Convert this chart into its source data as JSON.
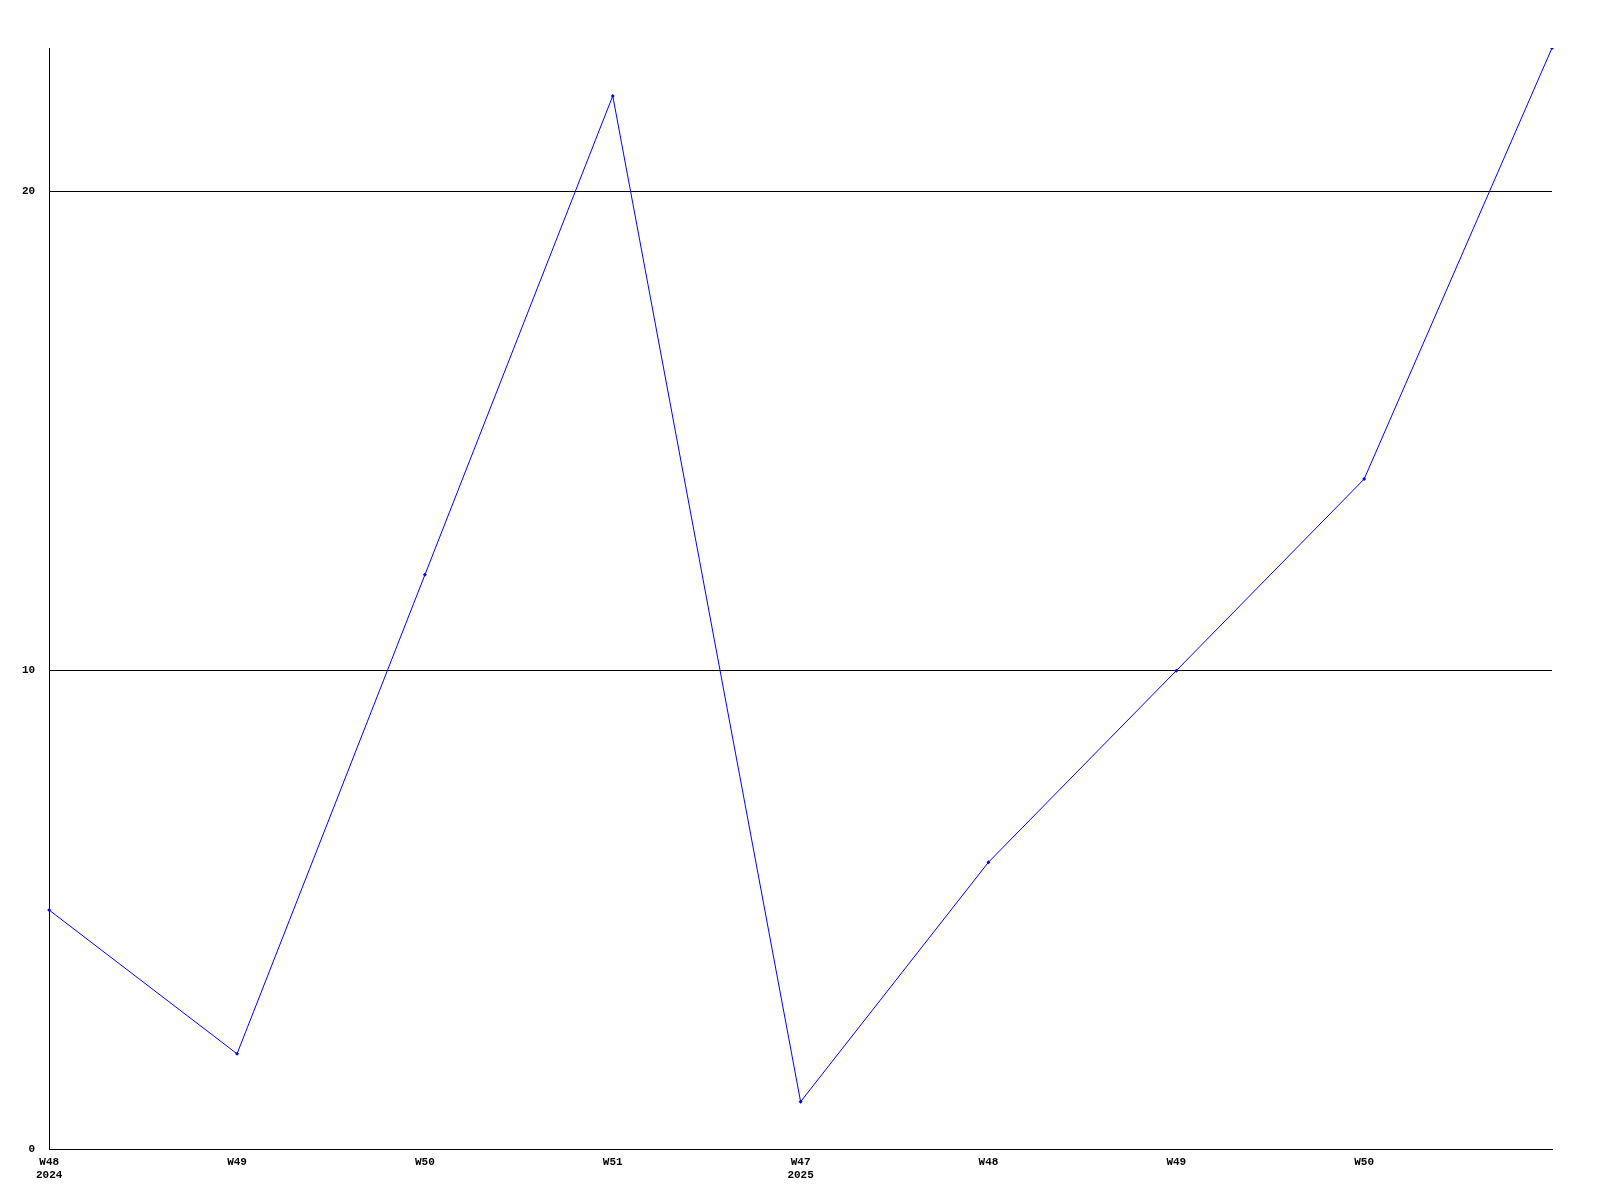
{
  "chart_data": {
    "type": "line",
    "categories": [
      "W48\n2024",
      "W49",
      "W50",
      "W51",
      "W47\n2025",
      "W48",
      "W49",
      "W50",
      null
    ],
    "series": [
      {
        "color": "#0000ff",
        "values": [
          5,
          2,
          12,
          22,
          1,
          6,
          10,
          14,
          23
        ]
      }
    ],
    "ylim": [
      0,
      23
    ],
    "yticks": [
      0,
      10,
      20
    ],
    "grid": "y",
    "marker": "diamond",
    "legend": false
  }
}
